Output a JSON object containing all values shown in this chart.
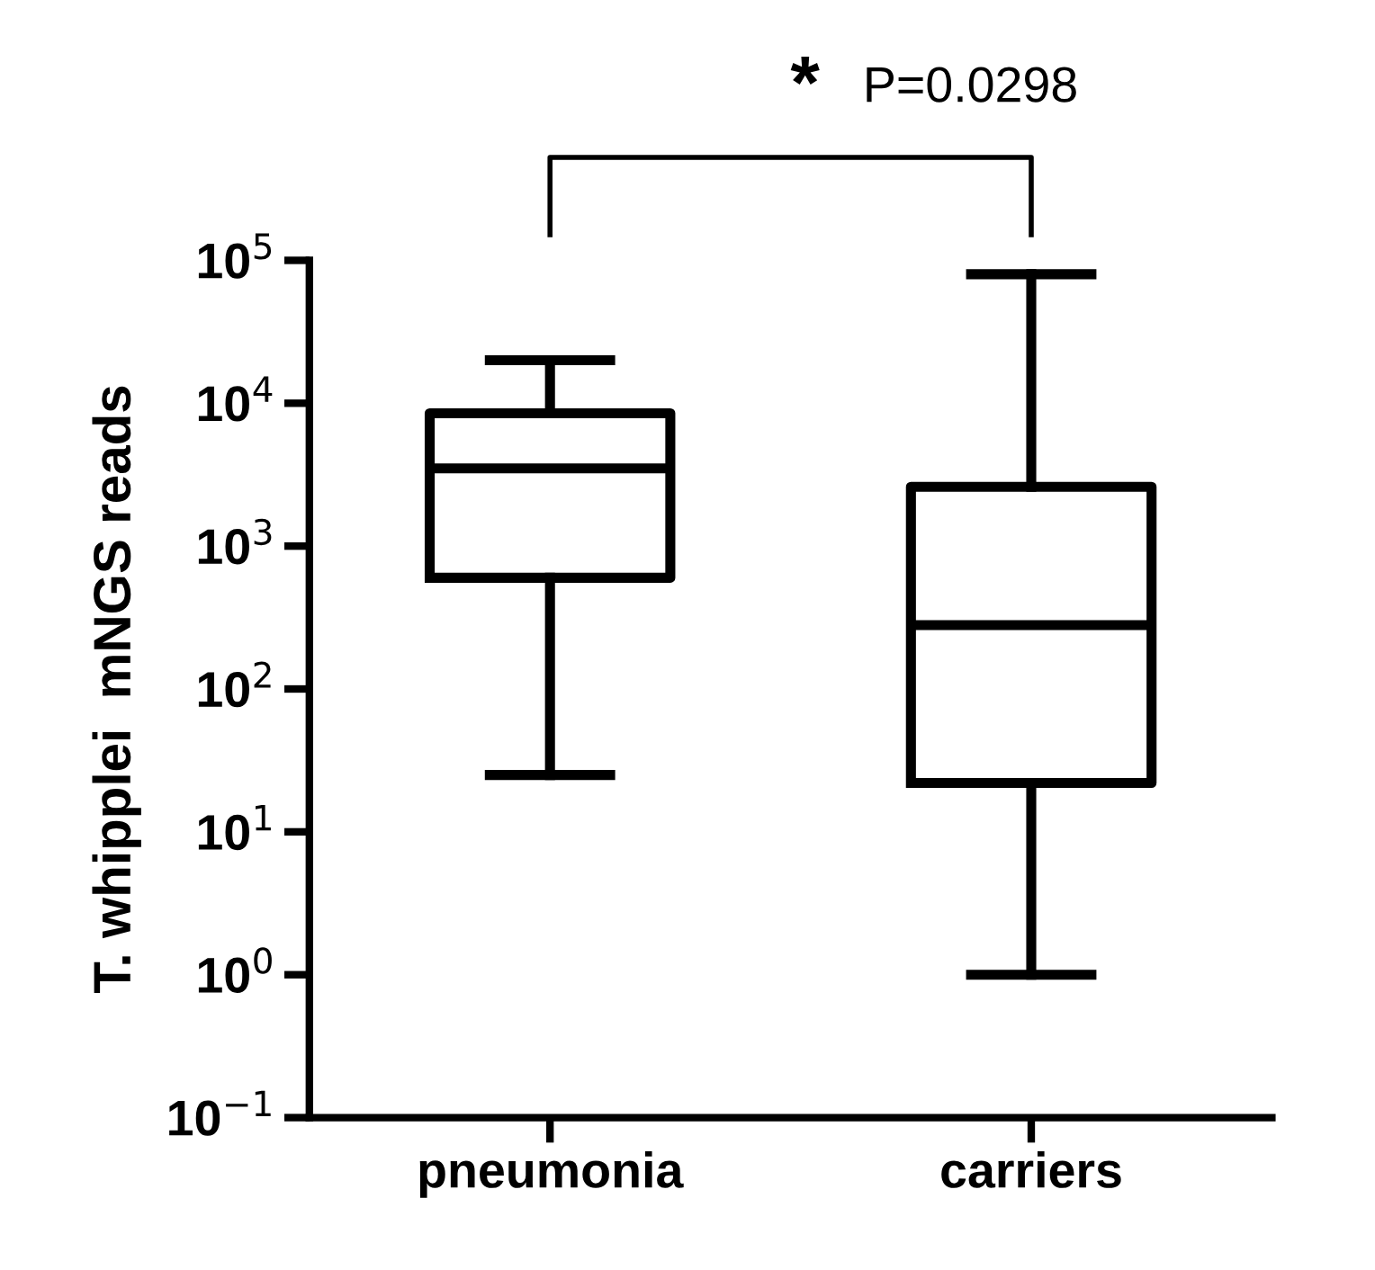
{
  "chart_data": {
    "type": "box",
    "ylabel": "T. whipplei  mNGS reads",
    "categories": [
      "pneumonia",
      "carriers"
    ],
    "boxes": [
      {
        "low": 25,
        "q1": 600,
        "median": 3500,
        "q3": 8500,
        "high": 20000
      },
      {
        "low": 1,
        "q1": 22,
        "median": 280,
        "q3": 2600,
        "high": 80000
      }
    ],
    "log": true,
    "ylim": [
      0.1,
      100000
    ],
    "yticks": [
      {
        "value": 0.1,
        "label": "10$^{−1}$"
      },
      {
        "value": 1,
        "label": "10$^{0}$"
      },
      {
        "value": 10,
        "label": "10$^{1}$"
      },
      {
        "value": 100,
        "label": "10$^{2}$"
      },
      {
        "value": 1000,
        "label": "10$^{3}$"
      },
      {
        "value": 10000,
        "label": "10$^{4}$"
      },
      {
        "value": 100000,
        "label": "10$^{5}$"
      }
    ],
    "grid": false,
    "color": "#000000",
    "annotations": [
      "*",
      "P=0.0298"
    ]
  }
}
